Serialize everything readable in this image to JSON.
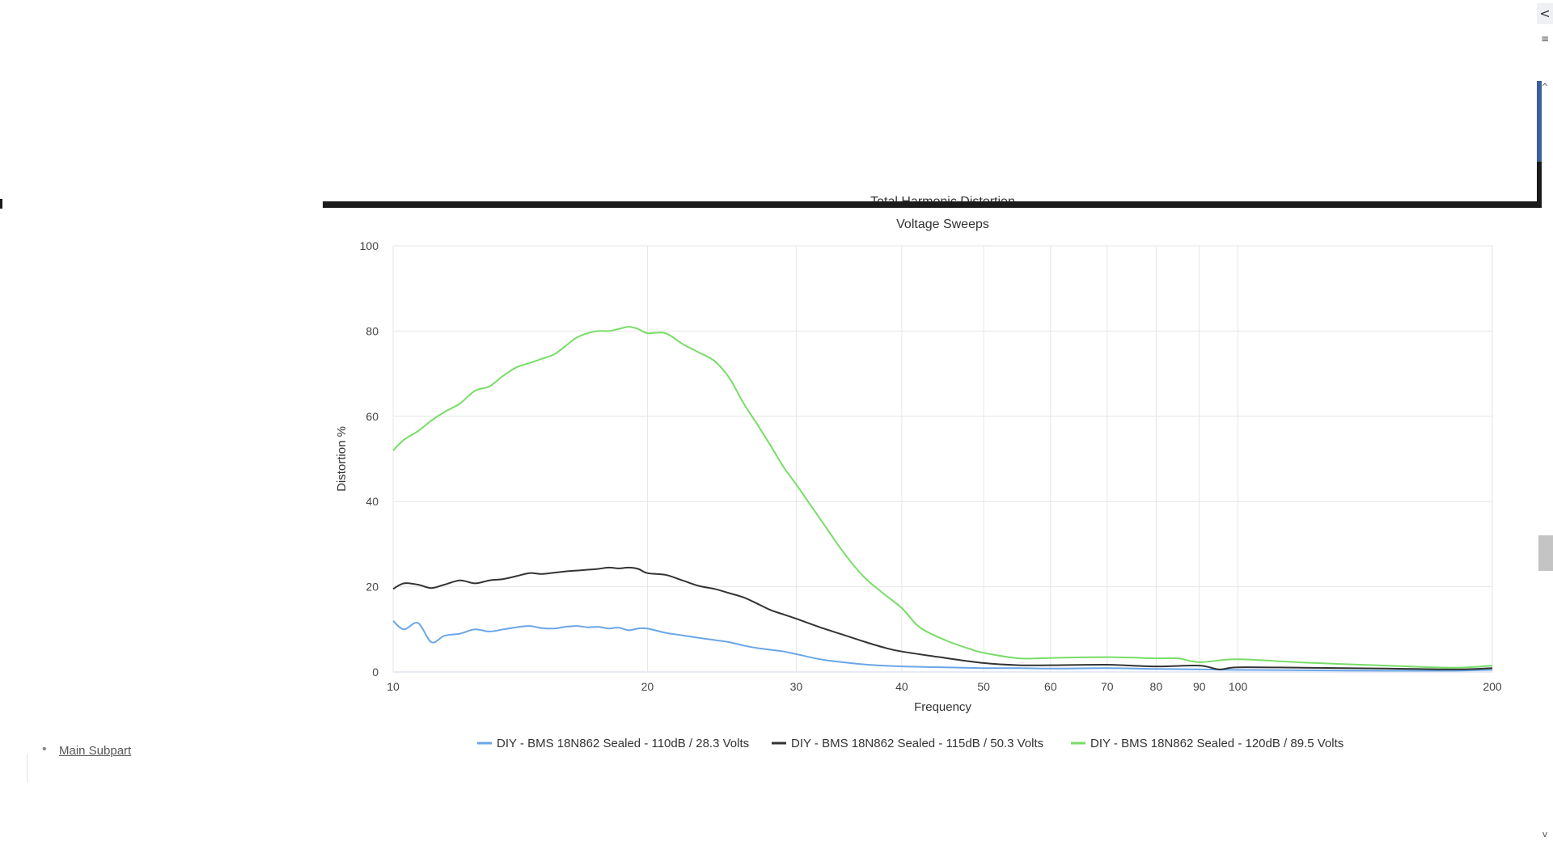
{
  "chart_data": {
    "type": "line",
    "title": "Total Harmonic Distortion",
    "subtitle": "Voltage Sweeps",
    "xlabel": "Frequency",
    "ylabel": "Distortion %",
    "xscale": "log",
    "xlim": [
      10,
      200
    ],
    "ylim": [
      0,
      100
    ],
    "xticks": [
      10,
      20,
      30,
      40,
      50,
      60,
      70,
      80,
      90,
      100,
      200
    ],
    "yticks": [
      0,
      20,
      40,
      60,
      80,
      100
    ],
    "grid": true,
    "legend_position": "bottom",
    "series": [
      {
        "name": "DIY - BMS 18N862 Sealed - 110dB / 28.3 Volts",
        "color": "#6aa6e8",
        "x": [
          10,
          10.3,
          10.7,
          11.1,
          11.5,
          12,
          12.5,
          13,
          13.5,
          14,
          14.5,
          15,
          15.5,
          16,
          16.5,
          17,
          17.5,
          18,
          18.5,
          19,
          19.5,
          20,
          21,
          22,
          23,
          24,
          25,
          26,
          27,
          28,
          29,
          30,
          32,
          34,
          36,
          38,
          40,
          45,
          50,
          55,
          60,
          70,
          80,
          90,
          100,
          120,
          150,
          180,
          200
        ],
        "y": [
          12,
          10,
          11.5,
          7,
          8.5,
          9,
          10,
          9.5,
          10,
          10.5,
          10.8,
          10.3,
          10.2,
          10.6,
          10.8,
          10.5,
          10.6,
          10.2,
          10.4,
          9.8,
          10.2,
          10.2,
          9.2,
          8.6,
          8,
          7.5,
          7,
          6.2,
          5.6,
          5.2,
          4.8,
          4.2,
          3,
          2.3,
          1.8,
          1.5,
          1.3,
          1.1,
          0.9,
          0.9,
          0.8,
          0.9,
          0.7,
          0.6,
          0.5,
          0.4,
          0.3,
          0.3,
          0.5
        ]
      },
      {
        "name": "DIY - BMS 18N862 Sealed - 115dB / 50.3 Volts",
        "color": "#333333",
        "x": [
          10,
          10.3,
          10.7,
          11.1,
          11.5,
          12,
          12.5,
          13,
          13.5,
          14,
          14.5,
          15,
          15.5,
          16,
          16.5,
          17,
          17.5,
          18,
          18.5,
          19,
          19.5,
          20,
          21,
          22,
          23,
          24,
          25,
          26,
          27,
          28,
          29,
          30,
          32,
          34,
          36,
          38,
          40,
          45,
          50,
          55,
          60,
          70,
          80,
          90,
          95,
          100,
          120,
          150,
          180,
          200
        ],
        "y": [
          19.5,
          20.8,
          20.5,
          19.7,
          20.5,
          21.5,
          20.8,
          21.5,
          21.8,
          22.5,
          23.2,
          23,
          23.3,
          23.6,
          23.8,
          24,
          24.2,
          24.5,
          24.3,
          24.5,
          24.2,
          23.2,
          22.8,
          21.5,
          20.2,
          19.5,
          18.5,
          17.5,
          16,
          14.5,
          13.5,
          12.5,
          10.5,
          8.8,
          7.2,
          5.8,
          4.8,
          3.3,
          2.1,
          1.6,
          1.6,
          1.7,
          1.3,
          1.5,
          0.6,
          1.1,
          1,
          0.8,
          0.6,
          0.9
        ]
      },
      {
        "name": "DIY - BMS 18N862 Sealed - 120dB / 89.5 Volts",
        "color": "#77dd66",
        "x": [
          10,
          10.3,
          10.7,
          11.1,
          11.5,
          12,
          12.5,
          13,
          13.5,
          14,
          14.5,
          15,
          15.5,
          16,
          16.5,
          17,
          17.5,
          18,
          18.5,
          19,
          19.5,
          20,
          21,
          22,
          23,
          24,
          25,
          26,
          27,
          28,
          29,
          30,
          32,
          34,
          36,
          38,
          40,
          42,
          45,
          48,
          50,
          55,
          60,
          70,
          80,
          85,
          90,
          100,
          120,
          150,
          180,
          200
        ],
        "y": [
          52,
          54.5,
          56.5,
          59,
          61,
          63,
          66,
          67,
          69.5,
          71.5,
          72.5,
          73.5,
          74.5,
          76.5,
          78.5,
          79.5,
          80,
          80,
          80.5,
          81,
          80.5,
          79.5,
          79.5,
          77,
          75,
          73,
          69,
          63,
          58,
          53,
          48,
          44,
          36,
          28.5,
          22.5,
          18.5,
          15,
          10.5,
          7.5,
          5.5,
          4.5,
          3.2,
          3.3,
          3.5,
          3.2,
          3.2,
          2.3,
          3,
          2.2,
          1.5,
          1,
          1.5
        ]
      }
    ]
  },
  "sidebar": {
    "bullet": "•",
    "link_text": "Main Subpart"
  },
  "rail": {
    "collapse_icon": "<",
    "menu_icon": "≡",
    "scroll_up_icon": "^",
    "scroll_down_icon": "v"
  },
  "colors": {
    "grid": "#e6e6e6",
    "axis": "#ccd6eb",
    "frame": "#1b1b1b",
    "accent_strip": "#3d5f9c"
  }
}
